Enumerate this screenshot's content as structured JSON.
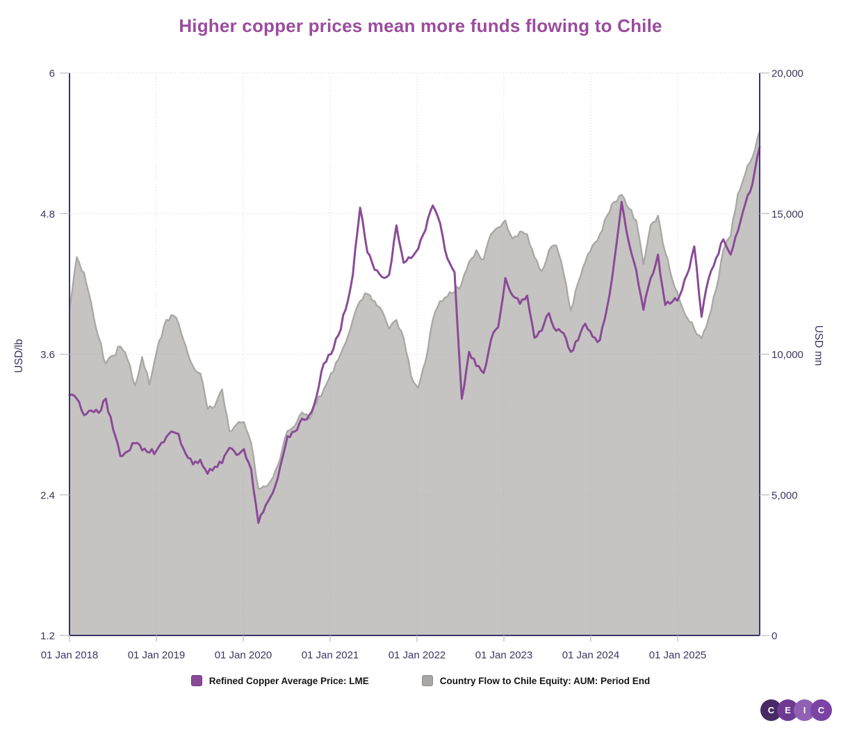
{
  "title": {
    "text": "Higher copper prices mean more funds flowing to Chile",
    "color": "#9a4c9d"
  },
  "legend": {
    "items": [
      {
        "label": "Refined Copper Average Price: LME",
        "color": "#8a4a96",
        "border": "#6e3a7a"
      },
      {
        "label": "Country Flow to Chile Equity: AUM: Period End",
        "color": "#a8a7a5",
        "border": "#8b8a88"
      }
    ]
  },
  "logo": {
    "letters": [
      "C",
      "E",
      "I",
      "C"
    ],
    "colors": [
      "#472a63",
      "#6e3a94",
      "#9061b3",
      "#7b44a4"
    ]
  },
  "colors": {
    "axis_line": "#3a3560",
    "tick_label": "#3a3560",
    "tick_mark_light": "#c3c3c9",
    "gridline": "#a6a6ab",
    "copper_line": "#8a4a96",
    "aum_fill": "#c5c4c2",
    "aum_edge": "#a9a8a5",
    "background": "#ffffff"
  },
  "chart_data": {
    "type": "line+area",
    "title": "Higher copper prices mean more funds flowing to Chile",
    "x_start": "2018-01",
    "x_frequency": "monthly",
    "x_tick_labels": [
      "01 Jan 2018",
      "01 Jan 2019",
      "01 Jan 2020",
      "01 Jan 2021",
      "01 Jan 2022",
      "01 Jan 2023",
      "01 Jan 2024",
      "01 Jan 2025"
    ],
    "grid": "dotted",
    "legend_position": "bottom",
    "left_axis": {
      "label": "USD/lb",
      "min": 1.2,
      "max": 6,
      "tick_labels": [
        "6",
        "4.8",
        "3.6",
        "2.4",
        "1.2"
      ],
      "tick_values": [
        6,
        4.8,
        3.6,
        2.4,
        1.2
      ]
    },
    "right_axis": {
      "label": "USD mn",
      "min": 0,
      "max": 20000,
      "tick_labels": [
        "20,000",
        "15,000",
        "10,000",
        "5,000",
        "0"
      ],
      "tick_values": [
        20000,
        15000,
        10000,
        5000,
        0
      ]
    },
    "series": [
      {
        "name": "Refined Copper Average Price: LME",
        "type": "line",
        "axis": "left",
        "unit": "USD/lb",
        "color": "#8a4a96",
        "values": [
          3.25,
          3.22,
          3.08,
          3.12,
          3.1,
          3.22,
          2.96,
          2.73,
          2.77,
          2.84,
          2.78,
          2.76,
          2.78,
          2.85,
          2.94,
          2.92,
          2.75,
          2.66,
          2.7,
          2.58,
          2.64,
          2.67,
          2.8,
          2.74,
          2.79,
          2.62,
          2.16,
          2.31,
          2.42,
          2.64,
          2.9,
          2.94,
          3.05,
          3.08,
          3.24,
          3.52,
          3.6,
          3.76,
          3.98,
          4.28,
          4.85,
          4.47,
          4.32,
          4.26,
          4.28,
          4.7,
          4.38,
          4.42,
          4.5,
          4.66,
          4.87,
          4.72,
          4.42,
          4.3,
          3.22,
          3.62,
          3.5,
          3.44,
          3.72,
          3.83,
          4.25,
          4.1,
          4.03,
          4.1,
          3.74,
          3.8,
          3.95,
          3.8,
          3.78,
          3.62,
          3.72,
          3.86,
          3.75,
          3.72,
          4.0,
          4.4,
          4.9,
          4.55,
          4.32,
          3.98,
          4.25,
          4.45,
          4.02,
          4.05,
          4.1,
          4.28,
          4.52,
          3.92,
          4.25,
          4.42,
          4.58,
          4.45,
          4.65,
          4.88,
          5.05,
          5.37
        ]
      },
      {
        "name": "Country Flow to Chile Equity: AUM: Period End",
        "type": "area",
        "axis": "right",
        "unit": "USD mn",
        "color": "#c5c4c2",
        "edge_color": "#a9a8a5",
        "values": [
          11600,
          13450,
          12900,
          11800,
          10600,
          9660,
          9950,
          10280,
          9800,
          8880,
          9900,
          8920,
          10100,
          11000,
          11390,
          11100,
          10300,
          9570,
          9320,
          8050,
          8150,
          8750,
          7270,
          7500,
          7590,
          6850,
          5220,
          5290,
          5610,
          6280,
          7270,
          7440,
          7930,
          7690,
          8260,
          8750,
          9320,
          9810,
          10400,
          11220,
          11890,
          12140,
          11890,
          11550,
          10900,
          11220,
          10560,
          9240,
          8800,
          9740,
          11220,
          11890,
          12040,
          12210,
          12530,
          13280,
          13700,
          13370,
          14270,
          14510,
          14760,
          14110,
          14360,
          14270,
          13450,
          12950,
          13700,
          13870,
          12880,
          11550,
          12530,
          13280,
          13870,
          14270,
          14930,
          15420,
          15670,
          15180,
          14760,
          13200,
          14600,
          14930,
          13620,
          12630,
          11900,
          11300,
          10900,
          10560,
          11300,
          12300,
          13700,
          14200,
          15700,
          16400,
          17000,
          17950
        ]
      }
    ]
  }
}
